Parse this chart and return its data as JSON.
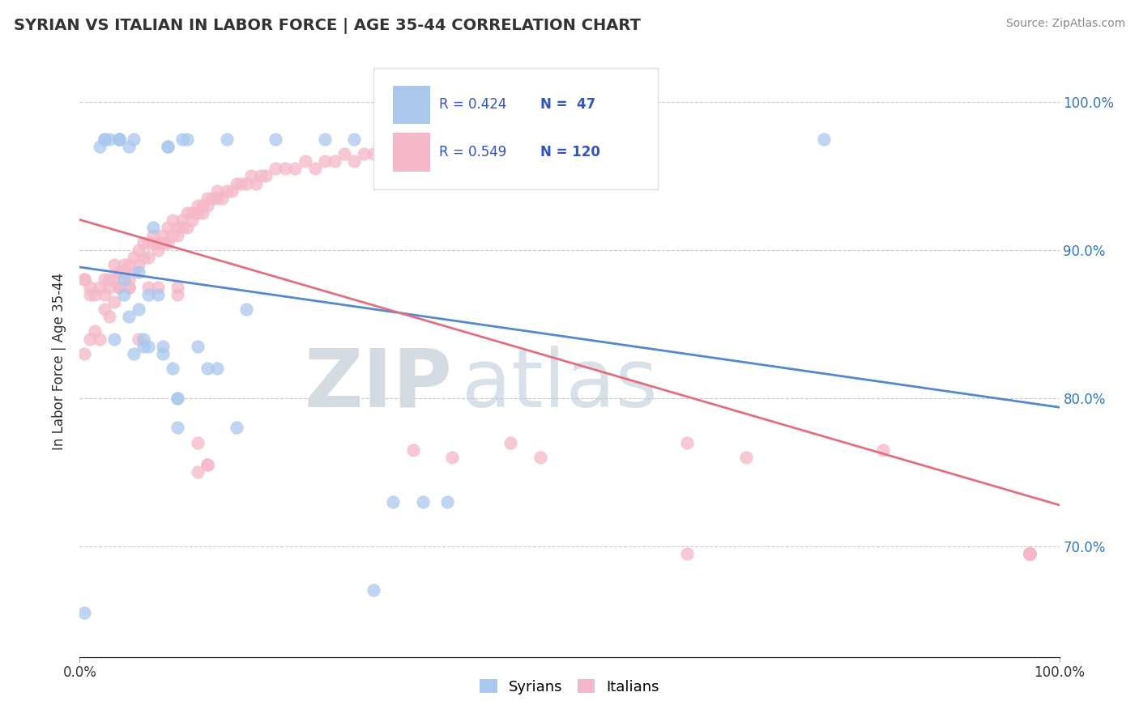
{
  "title": "SYRIAN VS ITALIAN IN LABOR FORCE | AGE 35-44 CORRELATION CHART",
  "source_text": "Source: ZipAtlas.com",
  "ylabel": "In Labor Force | Age 35-44",
  "xlim": [
    0.0,
    1.0
  ],
  "ylim": [
    0.625,
    1.025
  ],
  "yticks": [
    0.7,
    0.8,
    0.9,
    1.0
  ],
  "ytick_labels": [
    "70.0%",
    "80.0%",
    "90.0%",
    "100.0%"
  ],
  "xtick_left_label": "0.0%",
  "xtick_right_label": "100.0%",
  "syrian_R": 0.424,
  "syrian_N": 47,
  "italian_R": 0.549,
  "italian_N": 120,
  "syrian_color": "#aac8ee",
  "italian_color": "#f5b8c8",
  "syrian_line_color": "#5588cc",
  "italian_line_color": "#e07080",
  "legend_color": "#3355bb",
  "background_color": "#ffffff",
  "grid_color": "#cccccc",
  "syrian_x": [
    0.005,
    0.02,
    0.025,
    0.025,
    0.03,
    0.035,
    0.04,
    0.04,
    0.04,
    0.045,
    0.045,
    0.05,
    0.05,
    0.055,
    0.055,
    0.06,
    0.06,
    0.065,
    0.065,
    0.07,
    0.07,
    0.075,
    0.08,
    0.085,
    0.085,
    0.09,
    0.09,
    0.095,
    0.1,
    0.1,
    0.1,
    0.105,
    0.11,
    0.12,
    0.13,
    0.14,
    0.15,
    0.16,
    0.17,
    0.2,
    0.25,
    0.28,
    0.3,
    0.32,
    0.35,
    0.375,
    0.76
  ],
  "syrian_y": [
    0.655,
    0.97,
    0.975,
    0.975,
    0.975,
    0.84,
    0.975,
    0.975,
    0.975,
    0.88,
    0.87,
    0.97,
    0.855,
    0.975,
    0.83,
    0.885,
    0.86,
    0.84,
    0.835,
    0.835,
    0.87,
    0.915,
    0.87,
    0.835,
    0.83,
    0.97,
    0.97,
    0.82,
    0.8,
    0.78,
    0.8,
    0.975,
    0.975,
    0.835,
    0.82,
    0.82,
    0.975,
    0.78,
    0.86,
    0.975,
    0.975,
    0.975,
    0.67,
    0.73,
    0.73,
    0.73,
    0.975
  ],
  "italian_x": [
    0.005,
    0.01,
    0.015,
    0.02,
    0.025,
    0.025,
    0.03,
    0.03,
    0.035,
    0.035,
    0.04,
    0.04,
    0.045,
    0.045,
    0.05,
    0.05,
    0.055,
    0.055,
    0.06,
    0.06,
    0.065,
    0.065,
    0.07,
    0.07,
    0.075,
    0.075,
    0.08,
    0.08,
    0.085,
    0.085,
    0.09,
    0.09,
    0.095,
    0.095,
    0.1,
    0.1,
    0.105,
    0.105,
    0.11,
    0.11,
    0.115,
    0.115,
    0.12,
    0.12,
    0.125,
    0.125,
    0.13,
    0.13,
    0.135,
    0.14,
    0.14,
    0.145,
    0.15,
    0.155,
    0.16,
    0.165,
    0.17,
    0.175,
    0.18,
    0.185,
    0.19,
    0.2,
    0.21,
    0.22,
    0.23,
    0.24,
    0.25,
    0.26,
    0.27,
    0.28,
    0.29,
    0.3,
    0.31,
    0.32,
    0.33,
    0.34,
    0.35,
    0.36,
    0.37,
    0.38,
    0.005,
    0.01,
    0.015,
    0.02,
    0.025,
    0.03,
    0.035,
    0.04,
    0.06,
    0.07,
    0.08,
    0.1,
    0.1,
    0.05,
    0.04,
    0.05,
    0.005,
    0.01,
    0.62,
    0.34,
    0.12,
    0.13,
    0.12,
    0.13,
    0.38,
    0.47,
    0.44,
    0.62,
    0.68,
    0.82,
    0.97,
    0.97,
    0.97,
    0.97,
    0.97,
    0.97,
    0.97,
    0.97,
    0.97,
    0.97
  ],
  "italian_y": [
    0.88,
    0.875,
    0.87,
    0.875,
    0.87,
    0.88,
    0.875,
    0.88,
    0.88,
    0.89,
    0.885,
    0.875,
    0.885,
    0.89,
    0.88,
    0.89,
    0.885,
    0.895,
    0.89,
    0.9,
    0.895,
    0.905,
    0.895,
    0.905,
    0.905,
    0.91,
    0.9,
    0.905,
    0.905,
    0.91,
    0.905,
    0.915,
    0.91,
    0.92,
    0.91,
    0.915,
    0.915,
    0.92,
    0.915,
    0.925,
    0.92,
    0.925,
    0.925,
    0.93,
    0.925,
    0.93,
    0.93,
    0.935,
    0.935,
    0.935,
    0.94,
    0.935,
    0.94,
    0.94,
    0.945,
    0.945,
    0.945,
    0.95,
    0.945,
    0.95,
    0.95,
    0.955,
    0.955,
    0.955,
    0.96,
    0.955,
    0.96,
    0.96,
    0.965,
    0.96,
    0.965,
    0.965,
    0.965,
    0.97,
    0.965,
    0.97,
    0.97,
    0.975,
    0.97,
    0.975,
    0.83,
    0.84,
    0.845,
    0.84,
    0.86,
    0.855,
    0.865,
    0.875,
    0.84,
    0.875,
    0.875,
    0.875,
    0.87,
    0.875,
    0.875,
    0.875,
    0.88,
    0.87,
    0.695,
    0.765,
    0.77,
    0.755,
    0.75,
    0.755,
    0.76,
    0.76,
    0.77,
    0.77,
    0.76,
    0.765,
    0.695,
    0.695,
    0.695,
    0.695,
    0.695,
    0.695,
    0.695,
    0.695,
    0.695,
    0.695
  ]
}
